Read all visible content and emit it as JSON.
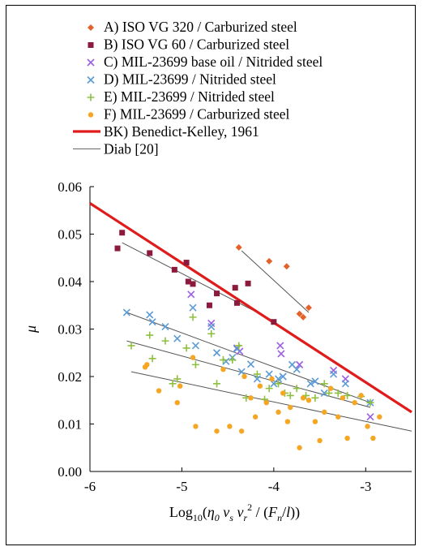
{
  "chart_data": {
    "type": "scatter",
    "xlabel": "Log10(η0 vs vr2 / (Fn/l))",
    "ylabel": "μ",
    "xlim": [
      -6,
      -2.5
    ],
    "ylim": [
      0,
      0.06
    ],
    "xticks": [
      -6,
      -5,
      -4,
      -3
    ],
    "xtick_labels": [
      "-6",
      "-5",
      "-4",
      "-3"
    ],
    "yticks": [
      0,
      0.01,
      0.02,
      0.03,
      0.04,
      0.05,
      0.06
    ],
    "ytick_labels": [
      "0.00",
      "0.01",
      "0.02",
      "0.03",
      "0.04",
      "0.05",
      "0.06"
    ],
    "grid": false,
    "legend_position": "top",
    "series": [
      {
        "name": "A) ISO VG 320 / Carburized steel",
        "marker": "diamond",
        "color": "#e2622a",
        "x": [
          -4.38,
          -4.05,
          -3.86,
          -3.72,
          -3.68,
          -3.62
        ],
        "y": [
          0.0472,
          0.0443,
          0.0432,
          0.0332,
          0.0325,
          0.0345
        ]
      },
      {
        "name": "B) ISO VG 60 / Carburized steel",
        "marker": "square",
        "color": "#8b1a3c",
        "x": [
          -5.7,
          -5.65,
          -5.35,
          -5.08,
          -4.95,
          -4.93,
          -4.88,
          -4.7,
          -4.62,
          -4.42,
          -4.4,
          -4.28,
          -4.0
        ],
        "y": [
          0.047,
          0.0503,
          0.046,
          0.0425,
          0.044,
          0.04,
          0.0395,
          0.035,
          0.0375,
          0.0387,
          0.0355,
          0.0396,
          0.0315
        ]
      },
      {
        "name": "C) MIL-23699 base oil / Nitrided steel",
        "marker": "x",
        "color": "#9b5fe0",
        "x": [
          -4.9,
          -4.68,
          -4.4,
          -4.37,
          -3.93,
          -3.92,
          -3.72,
          -3.35,
          -3.22,
          -2.95
        ],
        "y": [
          0.0373,
          0.0312,
          0.026,
          0.0253,
          0.0265,
          0.0248,
          0.0225,
          0.0213,
          0.0195,
          0.0115
        ]
      },
      {
        "name": "D) MIL-23699 / Nitrided steel",
        "marker": "x",
        "color": "#5b9bd5",
        "x": [
          -5.6,
          -5.35,
          -5.32,
          -5.18,
          -5.05,
          -4.88,
          -4.85,
          -4.68,
          -4.62,
          -4.52,
          -4.45,
          -4.4,
          -4.35,
          -4.25,
          -4.18,
          -4.05,
          -4.0,
          -3.95,
          -3.9,
          -3.8,
          -3.75,
          -3.6,
          -3.55,
          -3.45,
          -3.35,
          -3.22,
          -2.95
        ],
        "y": [
          0.0335,
          0.033,
          0.0315,
          0.0305,
          0.028,
          0.0345,
          0.0265,
          0.0305,
          0.025,
          0.0232,
          0.024,
          0.0258,
          0.021,
          0.0226,
          0.0195,
          0.0205,
          0.0185,
          0.0195,
          0.02,
          0.0225,
          0.0215,
          0.0185,
          0.019,
          0.0165,
          0.0205,
          0.0185,
          0.0145
        ]
      },
      {
        "name": "E) MIL-23699 / Nitrided steel",
        "marker": "plus",
        "color": "#8fbf3f",
        "x": [
          -5.55,
          -5.35,
          -5.32,
          -5.18,
          -5.1,
          -5.05,
          -4.95,
          -4.88,
          -4.85,
          -4.68,
          -4.62,
          -4.55,
          -4.45,
          -4.38,
          -4.3,
          -4.18,
          -4.1,
          -4.05,
          -3.95,
          -3.88,
          -3.82,
          -3.75,
          -3.65,
          -3.55,
          -3.45,
          -3.4,
          -3.3,
          -3.2,
          -3.05,
          -2.95
        ],
        "y": [
          0.0265,
          0.0287,
          0.0238,
          0.0275,
          0.0185,
          0.0195,
          0.026,
          0.0325,
          0.0225,
          0.029,
          0.0185,
          0.0235,
          0.0235,
          0.0265,
          0.0155,
          0.0205,
          0.0152,
          0.0175,
          0.0185,
          0.0165,
          0.016,
          0.0175,
          0.016,
          0.0155,
          0.0185,
          0.0165,
          0.0165,
          0.016,
          0.0158,
          0.0145
        ]
      },
      {
        "name": "F) MIL-23699 / Carburized steel",
        "marker": "circle",
        "color": "#f5a623",
        "x": [
          -5.4,
          -5.38,
          -5.25,
          -5.05,
          -5.02,
          -4.88,
          -4.85,
          -4.62,
          -4.55,
          -4.48,
          -4.35,
          -4.32,
          -4.25,
          -4.2,
          -4.15,
          -4.08,
          -4.02,
          -3.95,
          -3.9,
          -3.85,
          -3.82,
          -3.72,
          -3.68,
          -3.62,
          -3.55,
          -3.5,
          -3.45,
          -3.38,
          -3.3,
          -3.25,
          -3.2,
          -3.12,
          -3.05,
          -2.98,
          -2.92,
          -2.85
        ],
        "y": [
          0.022,
          0.0225,
          0.017,
          0.0145,
          0.018,
          0.024,
          0.0095,
          0.0085,
          0.0215,
          0.0095,
          0.0085,
          0.02,
          0.0155,
          0.0115,
          0.018,
          0.0145,
          0.0195,
          0.0125,
          0.0165,
          0.0105,
          0.0135,
          0.005,
          0.0155,
          0.015,
          0.0105,
          0.0065,
          0.0125,
          0.0175,
          0.0115,
          0.0155,
          0.007,
          0.0145,
          0.016,
          0.0095,
          0.007,
          0.0115
        ]
      }
    ],
    "fit_lines": [
      {
        "x": [
          -4.35,
          -3.62
        ],
        "y": [
          0.0465,
          0.0335
        ]
      },
      {
        "x": [
          -5.65,
          -4.0
        ],
        "y": [
          0.0482,
          0.0317
        ]
      },
      {
        "x": [
          -5.6,
          -2.95
        ],
        "y": [
          0.0335,
          0.0145
        ]
      },
      {
        "x": [
          -5.6,
          -2.95
        ],
        "y": [
          0.0275,
          0.0135
        ]
      },
      {
        "x": [
          -5.55,
          -2.5
        ],
        "y": [
          0.021,
          0.0085
        ]
      }
    ],
    "reference_lines": [
      {
        "name": "BK) Benedict-Kelley, 1961",
        "color": "#e01b1b",
        "style": "thick",
        "x": [
          -6,
          -2.5
        ],
        "y": [
          0.0565,
          0.0125
        ]
      },
      {
        "name": "Diab [20]",
        "color": "#666666",
        "style": "thin"
      }
    ]
  }
}
